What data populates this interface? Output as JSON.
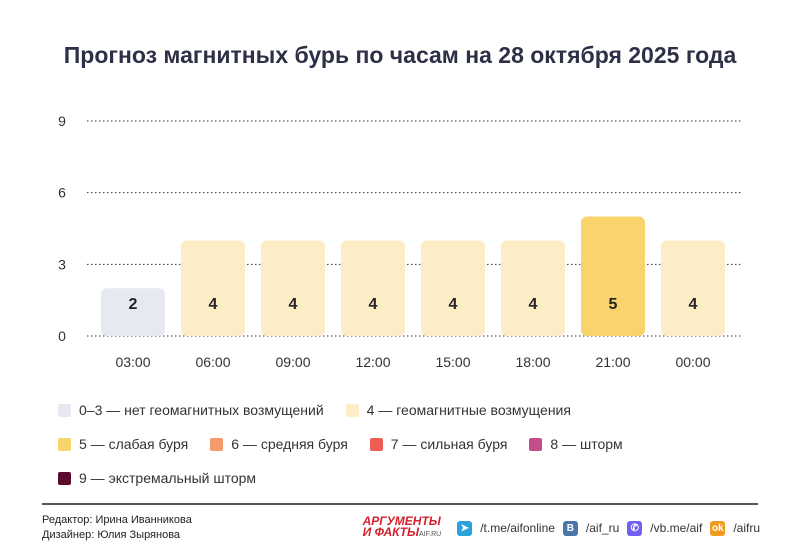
{
  "chart_data": {
    "type": "bar",
    "title": "Прогноз магнитных бурь по часам на 28 октября 2025 года",
    "categories": [
      "03:00",
      "06:00",
      "09:00",
      "12:00",
      "15:00",
      "18:00",
      "21:00",
      "00:00"
    ],
    "values": [
      2,
      4,
      4,
      4,
      4,
      4,
      5,
      4
    ],
    "ylim": [
      0,
      9
    ],
    "yticks": [
      0,
      3,
      6,
      9
    ],
    "xlabel": "",
    "ylabel": "",
    "grid": true,
    "legend": [
      {
        "label": "0–3 — нет геомагнитных возмущений",
        "color": "#e6e9f2"
      },
      {
        "label": "4 — геомагнитные возмущения",
        "color": "#fdedc6"
      },
      {
        "label": "5 — слабая буря",
        "color": "#f9d46c"
      },
      {
        "label": "6 — средняя буря",
        "color": "#f59b6b"
      },
      {
        "label": "7 — сильная буря",
        "color": "#ee5d55"
      },
      {
        "label": "8 — шторм",
        "color": "#c64d8b"
      },
      {
        "label": "9 — экстремальный шторм",
        "color": "#5b0c2c"
      }
    ]
  },
  "footer": {
    "editor": "Редактор: Ирина Иванникова",
    "designer": "Дизайнер: Юлия Зырянова",
    "logo_text": "АРГУМЕНТЫ И ФАКТЫ AIF.RU",
    "telegram": "/t.me/aifonline",
    "vk": "/aif_ru",
    "viber": "/vb.me/aif",
    "ok": "/aifru"
  }
}
